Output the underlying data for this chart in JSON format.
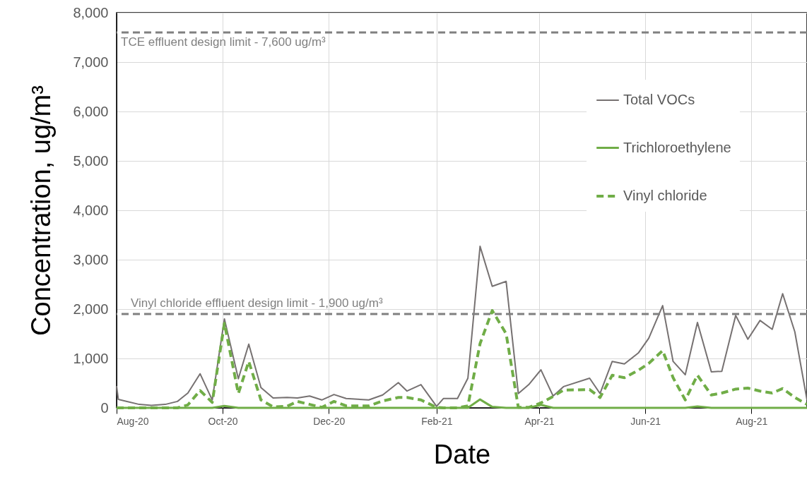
{
  "chart_data": {
    "type": "line",
    "xlabel": "Date",
    "ylabel": "Concentration, ug/m³",
    "x": [
      "2020-08-01",
      "2020-08-02",
      "2020-08-07",
      "2020-08-14",
      "2020-08-21",
      "2020-08-29",
      "2020-09-05",
      "2020-09-11",
      "2020-09-18",
      "2020-09-25",
      "2020-10-02",
      "2020-10-10",
      "2020-10-16",
      "2020-10-23",
      "2020-10-30",
      "2020-11-07",
      "2020-11-13",
      "2020-11-20",
      "2020-11-27",
      "2020-12-04",
      "2020-12-11",
      "2020-12-24",
      "2021-01-01",
      "2021-01-10",
      "2021-01-15",
      "2021-01-23",
      "2021-02-01",
      "2021-02-05",
      "2021-02-13",
      "2021-02-19",
      "2021-02-26",
      "2021-03-05",
      "2021-03-13",
      "2021-03-20",
      "2021-03-26",
      "2021-04-02",
      "2021-04-09",
      "2021-04-15",
      "2021-04-30",
      "2021-05-06",
      "2021-05-13",
      "2021-05-20",
      "2021-05-28",
      "2021-06-03",
      "2021-06-11",
      "2021-06-17",
      "2021-06-24",
      "2021-07-01",
      "2021-07-09",
      "2021-07-15",
      "2021-07-23",
      "2021-07-30",
      "2021-08-06",
      "2021-08-13",
      "2021-08-19",
      "2021-08-26",
      "2021-09-02"
    ],
    "series": [
      {
        "name": "Total VOCs",
        "color": "#767171",
        "line_style": "solid",
        "values": [
          440,
          170,
          130,
          70,
          50,
          70,
          130,
          300,
          690,
          160,
          1800,
          590,
          1290,
          410,
          200,
          210,
          200,
          240,
          160,
          270,
          190,
          160,
          260,
          510,
          340,
          470,
          30,
          190,
          190,
          600,
          3270,
          2460,
          2560,
          290,
          470,
          770,
          240,
          430,
          600,
          290,
          940,
          890,
          1110,
          1410,
          2070,
          940,
          670,
          1730,
          730,
          740,
          1870,
          1390,
          1770,
          1590,
          2310,
          1540,
          160
        ]
      },
      {
        "name": "Trichloroethylene",
        "color": "#70ad47",
        "line_style": "solid",
        "values": [
          0,
          0,
          0,
          0,
          0,
          0,
          0,
          0,
          0,
          0,
          40,
          0,
          0,
          0,
          0,
          0,
          0,
          0,
          0,
          0,
          0,
          0,
          0,
          0,
          0,
          0,
          0,
          0,
          0,
          0,
          170,
          20,
          0,
          0,
          0,
          60,
          0,
          0,
          0,
          0,
          0,
          0,
          0,
          0,
          0,
          0,
          0,
          30,
          0,
          0,
          0,
          0,
          0,
          0,
          0,
          0,
          0
        ]
      },
      {
        "name": "Vinyl chloride",
        "color": "#70ad47",
        "line_style": "dashed",
        "values": [
          0,
          0,
          0,
          0,
          0,
          0,
          0,
          60,
          350,
          110,
          1710,
          290,
          940,
          160,
          20,
          30,
          130,
          70,
          10,
          130,
          40,
          40,
          140,
          210,
          210,
          160,
          10,
          0,
          0,
          40,
          1300,
          1970,
          1500,
          10,
          10,
          100,
          230,
          360,
          370,
          210,
          660,
          610,
          760,
          900,
          1160,
          610,
          160,
          660,
          260,
          300,
          380,
          400,
          340,
          300,
          390,
          210,
          70
        ]
      }
    ],
    "xlim": [
      "2020-08-01",
      "2021-09-02"
    ],
    "xticks": [
      {
        "value": "2020-08-01",
        "label": "Aug-20"
      },
      {
        "value": "2020-10-01",
        "label": "Oct-20"
      },
      {
        "value": "2020-12-01",
        "label": "Dec-20"
      },
      {
        "value": "2021-02-01",
        "label": "Feb-21"
      },
      {
        "value": "2021-04-01",
        "label": "Apr-21"
      },
      {
        "value": "2021-06-01",
        "label": "Jun-21"
      },
      {
        "value": "2021-08-01",
        "label": "Aug-21"
      }
    ],
    "ylim": [
      0,
      8000
    ],
    "yticks": [
      {
        "value": 0,
        "label": "0"
      },
      {
        "value": 1000,
        "label": "1,000"
      },
      {
        "value": 2000,
        "label": "2,000"
      },
      {
        "value": 3000,
        "label": "3,000"
      },
      {
        "value": 4000,
        "label": "4,000"
      },
      {
        "value": 5000,
        "label": "5,000"
      },
      {
        "value": 6000,
        "label": "6,000"
      },
      {
        "value": 7000,
        "label": "7,000"
      },
      {
        "value": 8000,
        "label": "8,000"
      }
    ],
    "ref_lines": [
      {
        "axis": "y",
        "value": 7600,
        "label": "TCE effluent design limit - 7,600 ug/m³",
        "color": "#808080",
        "line_style": "dashed"
      },
      {
        "axis": "y",
        "value": 1900,
        "label": "Vinyl chloride effluent design limit - 1,900 ug/m³",
        "color": "#808080",
        "line_style": "dashed"
      }
    ],
    "grid": true,
    "legend": "top right"
  }
}
